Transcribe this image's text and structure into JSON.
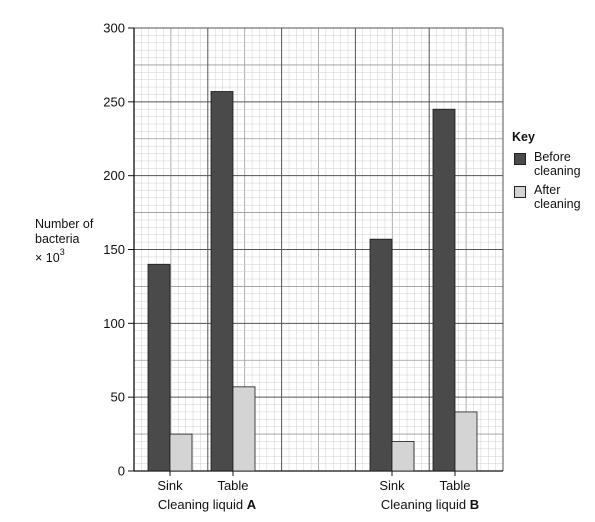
{
  "chart_data": {
    "type": "bar",
    "ylim": [
      0,
      300
    ],
    "y_ticks": [
      "0",
      "50",
      "100",
      "150",
      "200",
      "250",
      "300"
    ],
    "grid": true,
    "groups": [
      {
        "label": "Cleaning liquid",
        "label_bold": "A",
        "categories": [
          "Sink",
          "Table"
        ]
      },
      {
        "label": "Cleaning liquid",
        "label_bold": "B",
        "categories": [
          "Sink",
          "Table"
        ]
      }
    ],
    "series": [
      {
        "name": "Before cleaning",
        "line1": "Before",
        "line2": "cleaning",
        "color": "#4a4a4a",
        "values": [
          140,
          257,
          157,
          245
        ]
      },
      {
        "name": "After cleaning",
        "line1": "After",
        "line2": "cleaning",
        "color": "#d4d4d4",
        "values": [
          25,
          57,
          20,
          40
        ]
      }
    ],
    "ylabel": {
      "line1": "Number of",
      "line2": "bacteria",
      "line3_prefix": "× 10",
      "line3_sup": "3"
    },
    "legend": {
      "title": "Key",
      "placement": "right"
    }
  }
}
